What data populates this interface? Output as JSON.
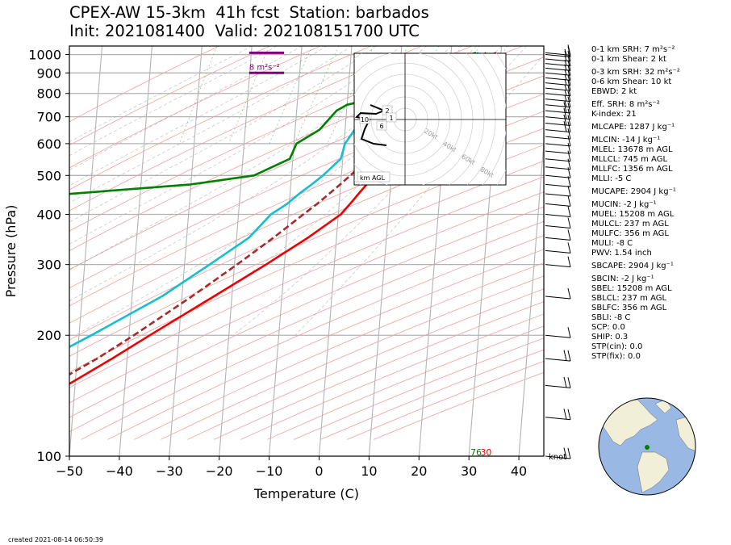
{
  "title_line1": "CPEX-AW 15-3km  41h fcst  Station: barbados",
  "title_line2": "Init: 2021081400  Valid: 202108151700 UTC",
  "created": "created 2021-08-14 06:50:39",
  "indices": [
    "0-1 km SRH: 7 m²s⁻²",
    "0-1 km Shear: 2 kt",
    "0-3 km SRH: 32 m²s⁻²",
    "0-6 km Shear: 10 kt",
    "EBWD: 2 kt",
    "Eff. SRH: 8 m²s⁻²",
    "K-index: 21",
    "MLCAPE: 1287 J kg⁻¹",
    "MLCIN: -14 J kg⁻¹",
    "MLEL: 13678 m AGL",
    "MLLCL: 745 m AGL",
    "MLLFC: 1356 m AGL",
    "MLLI: -5 C",
    "MUCAPE: 2904 J kg⁻¹",
    "MUCIN: -2 J kg⁻¹",
    "MUEL: 15208 m AGL",
    "MULCL: 237 m AGL",
    "MULFC: 356 m AGL",
    "MULI: -8 C",
    "PWV: 1.54 inch",
    "SBCAPE: 2904 J kg⁻¹",
    "SBCIN: -2 J kg⁻¹",
    "SBEL: 15208 m AGL",
    "SBLCL: 237 m AGL",
    "SBLFC: 356 m AGL",
    "SBLI: -8 C",
    "SCP: 0.0",
    "SHIP: 0.3",
    "STP(cin): 0.0",
    "STP(fix): 0.0"
  ],
  "colors": {
    "temperature": "#ee0000",
    "dewpoint": "#008000",
    "wetbulb": "#17becf",
    "parcel": "#a52a2a",
    "srh": "#800080",
    "map_ocean": "#9ab8e4",
    "map_land": "#f2efd8"
  },
  "chart_data": {
    "type": "skew-t",
    "xlabel": "Temperature (C)",
    "ylabel": "Pressure (hPa)",
    "xlim": [
      -50,
      45
    ],
    "ylim": [
      1050,
      100
    ],
    "x_ticks": [
      -50,
      -40,
      -30,
      -20,
      -10,
      0,
      10,
      20,
      30,
      40
    ],
    "y_ticks": [
      100,
      200,
      300,
      400,
      500,
      600,
      700,
      800,
      900,
      1000
    ],
    "pressure": [
      1010,
      975,
      950,
      925,
      900,
      875,
      850,
      825,
      800,
      775,
      750,
      725,
      700,
      650,
      600,
      550,
      500,
      475,
      450,
      425,
      400,
      350,
      300,
      250,
      200,
      175,
      150,
      125,
      100
    ],
    "temperature": [
      27,
      25.5,
      24.5,
      23.5,
      22.5,
      21,
      19.5,
      18.2,
      17.6,
      17.6,
      18.4,
      17,
      15.8,
      13.7,
      11.6,
      9.2,
      7,
      5.2,
      3.7,
      2.2,
      0.5,
      -5.7,
      -13.7,
      -23.6,
      -35.8,
      -43,
      -51.7,
      -61.3,
      -74.3
    ],
    "dewpoint": [
      25,
      21.5,
      19.5,
      17.5,
      16,
      14,
      12,
      10,
      9,
      5,
      0,
      -2,
      -3,
      -5.1,
      -9.5,
      -10.6,
      -17.5,
      -30,
      -54,
      -85,
      -95,
      -71.5,
      -71.3,
      -76.5,
      -76,
      -79.9,
      -89.4,
      -95.7,
      -99.3
    ],
    "wetbulb": [
      25.5,
      23,
      21.5,
      20,
      18.6,
      17,
      15,
      13.1,
      11.5,
      10,
      8,
      5.6,
      4,
      1.9,
      0.2,
      -0.4,
      -3.7,
      -5.8,
      -8.2,
      -10.4,
      -13.5,
      -17.5,
      -25,
      -34,
      -47.5,
      -56,
      -66,
      -77,
      -90
    ],
    "parcel": [
      29,
      26.4,
      25,
      23.6,
      22.5,
      21.4,
      20.4,
      19.3,
      18.3,
      17.2,
      16.1,
      15,
      13.8,
      11.2,
      8.4,
      5.2,
      1.8,
      -0.1,
      -2.2,
      -4.4,
      -7,
      -12.6,
      -19.5,
      -28,
      -39,
      -46,
      -55,
      -65.5,
      -80
    ],
    "surface_temp_label": "30",
    "surface_dewpoint_label": "76",
    "srh_label": "8 m²s⁻²",
    "srh_bar_pressures": [
      900,
      1010
    ],
    "wind_pressures": [
      100,
      125,
      150,
      175,
      200,
      250,
      300,
      325,
      350,
      375,
      400,
      425,
      450,
      475,
      500,
      525,
      550,
      575,
      600,
      625,
      650,
      675,
      700,
      725,
      750,
      775,
      800,
      825,
      850,
      875,
      900,
      925,
      950,
      975,
      1000,
      1010
    ],
    "wind_speeds_kt": [
      20,
      20,
      20,
      20,
      10,
      10,
      10,
      10,
      10,
      10,
      10,
      10,
      10,
      10,
      10,
      10,
      10,
      10,
      10,
      10,
      20,
      20,
      20,
      20,
      15,
      15,
      15,
      15,
      15,
      15,
      15,
      15,
      15,
      15,
      15,
      15
    ],
    "wind_units": "knot",
    "hodograph": {
      "ring_labels": [
        "20kt",
        "40kt",
        "60kt",
        "80kt"
      ],
      "height_labels": [
        "2",
        "1",
        "10",
        "6"
      ],
      "legend": "km AGL"
    }
  }
}
